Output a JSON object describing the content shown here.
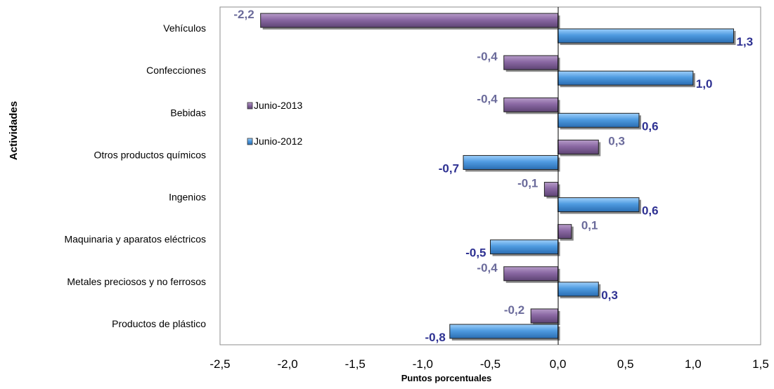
{
  "chart_data": {
    "type": "bar",
    "orientation": "horizontal",
    "categories": [
      "Vehículos",
      "Confecciones",
      "Bebidas",
      "Otros productos químicos",
      "Ingenios",
      "Maquinaria y aparatos eléctricos",
      "Metales preciosos  y no ferrosos",
      "Productos de plástico"
    ],
    "series": [
      {
        "name": "Junio-2013",
        "values": [
          -2.2,
          -0.4,
          -0.4,
          0.3,
          -0.1,
          0.1,
          -0.4,
          -0.2
        ],
        "labels": [
          "-2,2",
          "-0,4",
          "-0,4",
          "0,3",
          "-0,1",
          "0,1",
          "-0,4",
          "-0,2"
        ],
        "color": "#7b5a93",
        "label_color": "#6b6b9b"
      },
      {
        "name": "Junio-2012",
        "values": [
          1.3,
          1.0,
          0.6,
          -0.7,
          0.6,
          -0.5,
          0.3,
          -0.8
        ],
        "labels": [
          "1,3",
          "1,0",
          "0,6",
          "-0,7",
          "0,6",
          "-0,5",
          "0,3",
          "-0,8"
        ],
        "color": "#4a8fd4",
        "label_color": "#2e3192"
      }
    ],
    "xlabel": "Puntos porcentuales",
    "ylabel": "Actividades",
    "xlim": [
      -2.5,
      1.5
    ],
    "xticks": [
      -2.5,
      -2.0,
      -1.5,
      -1.0,
      -0.5,
      0.0,
      0.5,
      1.0,
      1.5
    ],
    "xtick_labels": [
      "-2,5",
      "-2,0",
      "-1,5",
      "-1,0",
      "-0,5",
      "0,0",
      "0,5",
      "1,0",
      "1,5"
    ],
    "grid": false,
    "legend": {
      "position": "inside-left",
      "entries": [
        "Junio-2013",
        "Junio-2012"
      ]
    }
  }
}
